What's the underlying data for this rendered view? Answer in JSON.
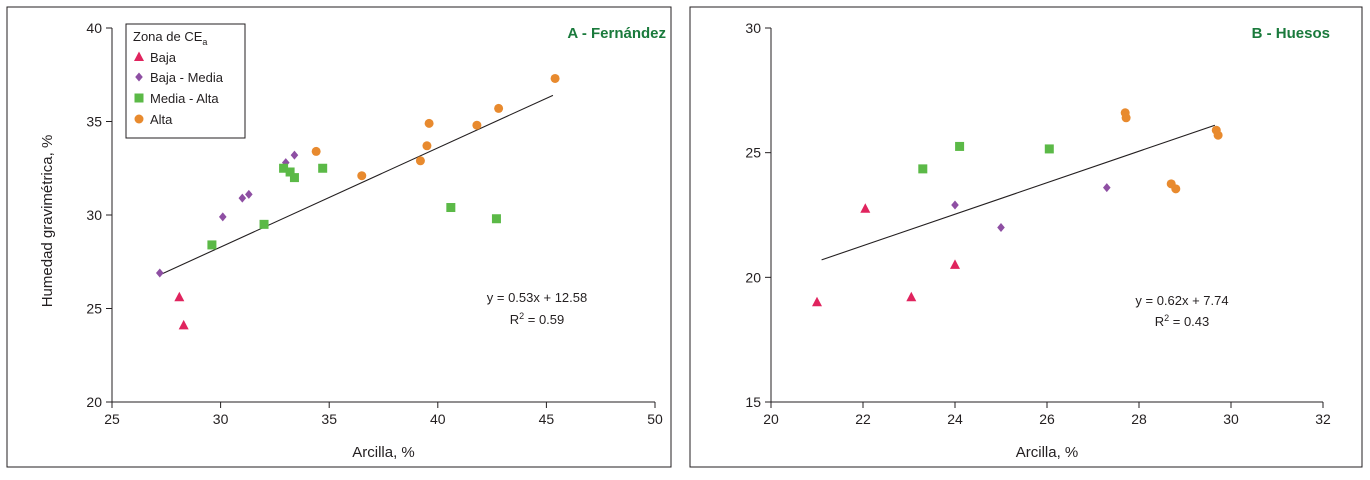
{
  "chart_data": [
    {
      "type": "scatter",
      "title": "A - Fernández",
      "xlabel": "Arcilla, %",
      "ylabel": "Humedad gravimétrica, %",
      "xlim": [
        25,
        50
      ],
      "ylim": [
        20,
        40
      ],
      "xticks": [
        "25",
        "30",
        "35",
        "40",
        "45",
        "50"
      ],
      "yticks": [
        "20",
        "25",
        "30",
        "35",
        "40"
      ],
      "legend": {
        "title_main": "Zona de CE",
        "title_sub": "a",
        "placement": "top-left"
      },
      "series": [
        {
          "name": "Baja",
          "marker": "triangle",
          "color": "#e0245e",
          "x": [
            28.1,
            28.3
          ],
          "y": [
            25.6,
            24.1
          ]
        },
        {
          "name": "Baja - Media",
          "marker": "diamond",
          "color": "#8e4fa3",
          "x": [
            27.2,
            30.1,
            31.0,
            31.3,
            33.0,
            33.4
          ],
          "y": [
            26.9,
            29.9,
            30.9,
            31.1,
            32.8,
            33.2
          ]
        },
        {
          "name": "Media - Alta",
          "marker": "square",
          "color": "#5bb947",
          "x": [
            29.6,
            32.0,
            32.9,
            33.2,
            33.4,
            34.7,
            40.6,
            42.7
          ],
          "y": [
            28.4,
            29.5,
            32.5,
            32.3,
            32.0,
            32.5,
            30.4,
            29.8
          ]
        },
        {
          "name": "Alta",
          "marker": "circle",
          "color": "#e88a2e",
          "x": [
            34.4,
            36.5,
            39.2,
            39.5,
            39.6,
            41.8,
            42.8,
            45.4
          ],
          "y": [
            33.4,
            32.1,
            32.9,
            33.7,
            34.9,
            34.8,
            35.7,
            37.3
          ]
        }
      ],
      "trendline": {
        "x": [
          27.2,
          45.3
        ],
        "y": [
          26.8,
          36.4
        ]
      },
      "equation": "y = 0.53x + 12.58",
      "r2_prefix": "R",
      "r2_sup": "2",
      "r2_value": " = 0.59"
    },
    {
      "type": "scatter",
      "title": "B - Huesos",
      "xlabel": "Arcilla, %",
      "ylabel": "",
      "xlim": [
        20,
        32
      ],
      "ylim": [
        15,
        30
      ],
      "xticks": [
        "20",
        "22",
        "24",
        "26",
        "28",
        "30",
        "32"
      ],
      "yticks": [
        "15",
        "20",
        "25",
        "30"
      ],
      "series": [
        {
          "name": "Baja",
          "marker": "triangle",
          "color": "#e0245e",
          "x": [
            21.0,
            22.05,
            23.05,
            24.0
          ],
          "y": [
            19.0,
            22.75,
            19.2,
            20.5
          ]
        },
        {
          "name": "Baja - Media",
          "marker": "diamond",
          "color": "#8e4fa3",
          "x": [
            24.0,
            25.0,
            27.3
          ],
          "y": [
            22.9,
            22.0,
            23.6
          ]
        },
        {
          "name": "Media - Alta",
          "marker": "square",
          "color": "#5bb947",
          "x": [
            23.3,
            24.1,
            26.05
          ],
          "y": [
            24.35,
            25.25,
            25.15
          ]
        },
        {
          "name": "Alta",
          "marker": "circle",
          "color": "#e88a2e",
          "x": [
            27.7,
            27.72,
            28.7,
            28.8,
            29.68,
            29.72
          ],
          "y": [
            26.6,
            26.4,
            23.75,
            23.55,
            25.9,
            25.7
          ]
        }
      ],
      "trendline": {
        "x": [
          21.1,
          29.65
        ],
        "y": [
          20.7,
          26.1
        ]
      },
      "equation": "y = 0.62x + 7.74",
      "r2_prefix": "R",
      "r2_sup": "2",
      "r2_value": " = 0.43"
    }
  ]
}
